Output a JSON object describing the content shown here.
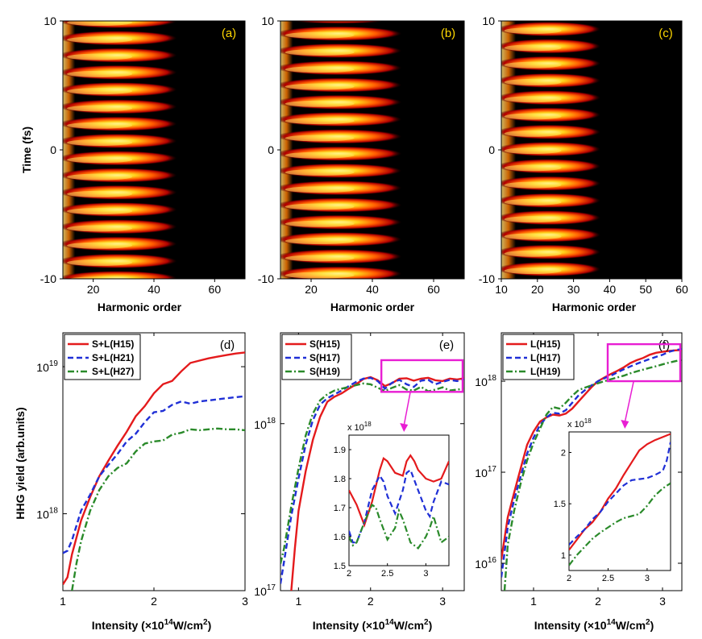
{
  "figure": {
    "heatmaps": {
      "xlabel": "Harmonic order",
      "ylabel": "Time (fs)",
      "y_ticks": [
        "10",
        "0",
        "-10"
      ],
      "panels": [
        {
          "label": "(a)",
          "xlim": [
            10,
            70
          ],
          "x_ticks": [
            "20",
            "40",
            "60"
          ],
          "cutoff": 47,
          "period_fs": 1.33,
          "offset_fs": 0.0
        },
        {
          "label": "(b)",
          "xlim": [
            10,
            70
          ],
          "x_ticks": [
            "20",
            "40",
            "60"
          ],
          "cutoff": 49,
          "period_fs": 1.33,
          "offset_fs": 0.35
        },
        {
          "label": "(c)",
          "xlim": [
            10,
            60
          ],
          "x_ticks": [
            "10",
            "20",
            "30",
            "40",
            "50",
            "60"
          ],
          "cutoff": 37,
          "period_fs": 1.33,
          "offset_fs": 0.7
        }
      ]
    },
    "ylabel_bottom": "HHG yield (arb.units)",
    "xlabel_bottom_prefix": "Intensity (×10",
    "xlabel_bottom_exp": "14",
    "xlabel_bottom_mid": "W/cm",
    "xlabel_bottom_exp2": "2",
    "xlabel_bottom_suffix": ")",
    "inset_scale_prefix": "x 10",
    "inset_scale_exp": "18"
  },
  "chart_data": [
    {
      "type": "line",
      "label": "(d)",
      "yscale": "log",
      "xlim": [
        1,
        3
      ],
      "ylim": [
        3e+17,
        1.7e+19
      ],
      "x_ticks": [
        1,
        2,
        3
      ],
      "y_ticks": [
        {
          "v": 1e+18,
          "b": "10",
          "e": "18"
        },
        {
          "v": 1e+19,
          "b": "10",
          "e": "19"
        }
      ],
      "series": [
        {
          "name": "S+L(H15)",
          "color": "#e41a1c",
          "dash": "solid",
          "x": [
            1.0,
            1.05,
            1.1,
            1.2,
            1.3,
            1.4,
            1.5,
            1.6,
            1.7,
            1.8,
            1.9,
            2.0,
            2.1,
            2.2,
            2.3,
            2.4,
            2.5,
            2.6,
            2.7,
            2.8,
            2.9,
            3.0
          ],
          "y": [
            3.3e+17,
            3.7e+17,
            5.3e+17,
            9e+17,
            1.3e+18,
            1.8e+18,
            2.3e+18,
            2.9e+18,
            3.6e+18,
            4.6e+18,
            5.4e+18,
            6.6e+18,
            7.6e+18,
            8e+18,
            9.3e+18,
            1.06e+19,
            1.1e+19,
            1.14e+19,
            1.17e+19,
            1.2e+19,
            1.23e+19,
            1.25e+19
          ]
        },
        {
          "name": "S+L(H21)",
          "color": "#1f2fd6",
          "dash": "dashed",
          "x": [
            1.0,
            1.05,
            1.1,
            1.2,
            1.3,
            1.4,
            1.5,
            1.6,
            1.7,
            1.8,
            1.9,
            2.0,
            2.1,
            2.2,
            2.3,
            2.4,
            2.5,
            2.6,
            2.7,
            2.8,
            2.9,
            3.0
          ],
          "y": [
            5.4e+17,
            5.6e+17,
            6.6e+17,
            1.05e+18,
            1.35e+18,
            1.8e+18,
            2.15e+18,
            2.55e+18,
            3.1e+18,
            3.5e+18,
            4.2e+18,
            4.9e+18,
            5e+18,
            5.5e+18,
            5.8e+18,
            5.6e+18,
            5.8e+18,
            5.9e+18,
            6e+18,
            6.1e+18,
            6.2e+18,
            6.3e+18
          ]
        },
        {
          "name": "S+L(H27)",
          "color": "#2a8a2a",
          "dash": "dashdot",
          "x": [
            1.1,
            1.15,
            1.2,
            1.3,
            1.4,
            1.5,
            1.6,
            1.7,
            1.8,
            1.9,
            2.0,
            2.1,
            2.2,
            2.3,
            2.4,
            2.5,
            2.6,
            2.7,
            2.8,
            2.9,
            3.0
          ],
          "y": [
            3e+17,
            4.6e+17,
            6.5e+17,
            1.05e+18,
            1.45e+18,
            1.8e+18,
            2.05e+18,
            2.2e+18,
            2.65e+18,
            3e+18,
            3.1e+18,
            3.15e+18,
            3.45e+18,
            3.55e+18,
            3.75e+18,
            3.7e+18,
            3.75e+18,
            3.8e+18,
            3.75e+18,
            3.75e+18,
            3.7e+18
          ]
        }
      ]
    },
    {
      "type": "line",
      "label": "(e)",
      "yscale": "log",
      "xlim": [
        0.75,
        3.3
      ],
      "ylim": [
        1e+17,
        3.5e+18
      ],
      "x_ticks": [
        1,
        2,
        3
      ],
      "y_ticks": [
        {
          "v": 1e+17,
          "b": "10",
          "e": "17"
        },
        {
          "v": 1e+18,
          "b": "10",
          "e": "18"
        }
      ],
      "series": [
        {
          "name": "S(H15)",
          "color": "#e41a1c",
          "dash": "solid",
          "x": [
            0.9,
            0.95,
            1.0,
            1.1,
            1.2,
            1.3,
            1.4,
            1.5,
            1.6,
            1.7,
            1.8,
            1.9,
            2.0,
            2.1,
            2.2,
            2.3,
            2.4,
            2.5,
            2.6,
            2.7,
            2.8,
            2.9,
            3.0,
            3.1,
            3.2,
            3.3
          ],
          "y": [
            1e+17,
            1.8e+17,
            3e+17,
            5.2e+17,
            8e+17,
            1.1e+18,
            1.35e+18,
            1.45e+18,
            1.52e+18,
            1.62e+18,
            1.72e+18,
            1.85e+18,
            1.9e+18,
            1.82e+18,
            1.68e+18,
            1.75e+18,
            1.86e+18,
            1.87e+18,
            1.81e+18,
            1.86e+18,
            1.88e+18,
            1.82e+18,
            1.8e+18,
            1.86e+18,
            1.84e+18,
            1.87e+18
          ]
        },
        {
          "name": "S(H17)",
          "color": "#1f2fd6",
          "dash": "dashed",
          "x": [
            0.75,
            0.8,
            0.9,
            1.0,
            1.1,
            1.2,
            1.3,
            1.4,
            1.5,
            1.6,
            1.7,
            1.8,
            1.9,
            2.0,
            2.1,
            2.2,
            2.3,
            2.4,
            2.5,
            2.6,
            2.7,
            2.8,
            2.9,
            3.0,
            3.1,
            3.2,
            3.3
          ],
          "y": [
            1.1e+17,
            1.5e+17,
            2.8e+17,
            4.7e+17,
            7.5e+17,
            1.05e+18,
            1.3e+18,
            1.42e+18,
            1.5e+18,
            1.58e+18,
            1.68e+18,
            1.78e+18,
            1.86e+18,
            1.88e+18,
            1.8e+18,
            1.62e+18,
            1.76e+18,
            1.83e+18,
            1.72e+18,
            1.66e+18,
            1.81e+18,
            1.83e+18,
            1.72e+18,
            1.78e+18,
            1.83e+18,
            1.8e+18,
            1.85e+18
          ]
        },
        {
          "name": "S(H19)",
          "color": "#2a8a2a",
          "dash": "dashdot",
          "x": [
            0.75,
            0.8,
            0.9,
            1.0,
            1.1,
            1.2,
            1.3,
            1.4,
            1.5,
            1.6,
            1.7,
            1.8,
            1.9,
            2.0,
            2.1,
            2.2,
            2.3,
            2.4,
            2.5,
            2.6,
            2.7,
            2.8,
            2.9,
            3.0,
            3.1,
            3.2,
            3.3
          ],
          "y": [
            1.45e+17,
            1.8e+17,
            3.2e+17,
            5.4e+17,
            8.5e+17,
            1.15e+18,
            1.38e+18,
            1.5e+18,
            1.58e+18,
            1.62e+18,
            1.66e+18,
            1.7e+18,
            1.74e+18,
            1.72e+18,
            1.64e+18,
            1.57e+18,
            1.64e+18,
            1.7e+18,
            1.6e+18,
            1.58e+18,
            1.66e+18,
            1.56e+18,
            1.6e+18,
            1.65e+18,
            1.58e+18,
            1.6e+18,
            1.62e+18
          ]
        }
      ],
      "highlight": {
        "xlim": [
          2.15,
          3.3
        ],
        "ylim": [
          1.55e+18,
          2.4e+18
        ],
        "color": "#e81ed3"
      },
      "inset": {
        "xlim": [
          2,
          3.3
        ],
        "ylim": [
          1.5,
          1.95
        ],
        "x_ticks": [
          2,
          2.5,
          3
        ],
        "y_ticks": [
          1.5,
          1.6,
          1.7,
          1.8,
          1.9
        ],
        "series": [
          {
            "color": "#e41a1c",
            "dash": "solid",
            "x": [
              2.0,
              2.1,
              2.2,
              2.3,
              2.4,
              2.45,
              2.5,
              2.6,
              2.7,
              2.75,
              2.8,
              2.85,
              2.9,
              3.0,
              3.1,
              3.2,
              3.3
            ],
            "y": [
              1.76,
              1.71,
              1.64,
              1.72,
              1.83,
              1.87,
              1.86,
              1.82,
              1.81,
              1.86,
              1.88,
              1.86,
              1.83,
              1.8,
              1.79,
              1.8,
              1.86
            ]
          },
          {
            "color": "#1f2fd6",
            "dash": "dashed",
            "x": [
              2.0,
              2.05,
              2.1,
              2.2,
              2.3,
              2.4,
              2.45,
              2.5,
              2.6,
              2.7,
              2.75,
              2.8,
              2.9,
              3.0,
              3.05,
              3.1,
              3.2,
              3.3
            ],
            "y": [
              1.62,
              1.58,
              1.58,
              1.65,
              1.76,
              1.81,
              1.79,
              1.74,
              1.68,
              1.76,
              1.82,
              1.83,
              1.76,
              1.69,
              1.67,
              1.72,
              1.79,
              1.78
            ]
          },
          {
            "color": "#2a8a2a",
            "dash": "dashdot",
            "x": [
              2.0,
              2.05,
              2.1,
              2.2,
              2.3,
              2.35,
              2.4,
              2.5,
              2.6,
              2.65,
              2.7,
              2.8,
              2.9,
              3.0,
              3.05,
              3.1,
              3.2,
              3.3
            ],
            "y": [
              1.6,
              1.57,
              1.58,
              1.65,
              1.71,
              1.7,
              1.66,
              1.59,
              1.63,
              1.69,
              1.66,
              1.58,
              1.56,
              1.6,
              1.63,
              1.67,
              1.58,
              1.6
            ]
          }
        ]
      }
    },
    {
      "type": "line",
      "label": "(f)",
      "yscale": "log",
      "xlim": [
        0.5,
        3.3
      ],
      "ylim": [
        5000000000000000.0,
        3.4e+18
      ],
      "x_ticks": [
        1,
        2,
        3
      ],
      "y_ticks": [
        {
          "v": 1e+16,
          "b": "10",
          "e": "16"
        },
        {
          "v": 1e+17,
          "b": "10",
          "e": "17"
        },
        {
          "v": 1e+18,
          "b": "10",
          "e": "18"
        }
      ],
      "series": [
        {
          "name": "L(H15)",
          "color": "#e41a1c",
          "dash": "solid",
          "x": [
            0.5,
            0.6,
            0.7,
            0.8,
            0.9,
            1.0,
            1.1,
            1.2,
            1.3,
            1.4,
            1.5,
            1.6,
            1.7,
            1.8,
            1.9,
            2.0,
            2.1,
            2.2,
            2.3,
            2.4,
            2.5,
            2.6,
            2.7,
            2.8,
            2.9,
            3.0,
            3.1,
            3.2,
            3.3
          ],
          "y": [
            1.1e+16,
            3.2e+16,
            6e+16,
            1.1e+17,
            2e+17,
            2.8e+17,
            3.6e+17,
            4e+17,
            4.3e+17,
            4.2e+17,
            4.4e+17,
            5e+17,
            6e+17,
            7.2e+17,
            8.6e+17,
            1e+18,
            1.1e+18,
            1.2e+18,
            1.3e+18,
            1.42e+18,
            1.58e+18,
            1.7e+18,
            1.8e+18,
            1.95e+18,
            2.05e+18,
            2.1e+18,
            2.15e+18,
            2.18e+18,
            2.2e+18
          ]
        },
        {
          "name": "L(H17)",
          "color": "#1f2fd6",
          "dash": "dashed",
          "x": [
            0.5,
            0.6,
            0.7,
            0.8,
            0.9,
            1.0,
            1.1,
            1.2,
            1.3,
            1.4,
            1.5,
            1.6,
            1.7,
            1.8,
            1.9,
            2.0,
            2.1,
            2.2,
            2.3,
            2.4,
            2.5,
            2.6,
            2.7,
            2.8,
            2.9,
            3.0,
            3.1,
            3.2,
            3.3
          ],
          "y": [
            7000000000000000.0,
            2.5e+16,
            5e+16,
            9e+16,
            1.6e+17,
            2.4e+17,
            3.3e+17,
            4e+17,
            4.5e+17,
            4.4e+17,
            4.8e+17,
            5.8e+17,
            7e+17,
            8e+17,
            9e+17,
            1e+18,
            1.08e+18,
            1.15e+18,
            1.25e+18,
            1.35e+18,
            1.45e+18,
            1.55e+18,
            1.65e+18,
            1.75e+18,
            1.85e+18,
            1.95e+18,
            2.1e+18,
            2.2e+18,
            2.25e+18
          ]
        },
        {
          "name": "L(H19)",
          "color": "#2a8a2a",
          "dash": "dashdot",
          "x": [
            0.55,
            0.6,
            0.7,
            0.8,
            0.9,
            1.0,
            1.1,
            1.2,
            1.3,
            1.4,
            1.5,
            1.6,
            1.7,
            1.8,
            1.9,
            2.0,
            2.1,
            2.2,
            2.3,
            2.4,
            2.5,
            2.6,
            2.7,
            2.8,
            2.9,
            3.0,
            3.1,
            3.2,
            3.3
          ],
          "y": [
            5000000000000000.0,
            1.6e+16,
            3.8e+16,
            7.5e+16,
            1.35e+17,
            2.1e+17,
            3e+17,
            4.3e+17,
            5.2e+17,
            5e+17,
            5.8e+17,
            6.9e+17,
            8e+17,
            8.5e+17,
            9e+17,
            9.5e+17,
            1e+18,
            1.05e+18,
            1.1e+18,
            1.15e+18,
            1.22e+18,
            1.28e+18,
            1.34e+18,
            1.4e+18,
            1.46e+18,
            1.53e+18,
            1.6e+18,
            1.66e+18,
            1.72e+18
          ]
        }
      ],
      "highlight": {
        "xlim": [
          2.15,
          3.3
        ],
        "ylim": [
          1e+18,
          2.55e+18
        ],
        "color": "#e81ed3"
      },
      "inset": {
        "xlim": [
          2,
          3.3
        ],
        "ylim": [
          0.85,
          2.2
        ],
        "x_ticks": [
          2,
          2.5,
          3
        ],
        "y_ticks": [
          1,
          1.5,
          2
        ],
        "series": [
          {
            "color": "#e41a1c",
            "dash": "solid",
            "x": [
              2.0,
              2.1,
              2.2,
              2.3,
              2.4,
              2.5,
              2.6,
              2.7,
              2.8,
              2.9,
              3.0,
              3.1,
              3.2,
              3.3
            ],
            "y": [
              1.05,
              1.15,
              1.25,
              1.32,
              1.42,
              1.55,
              1.65,
              1.78,
              1.9,
              2.02,
              2.08,
              2.12,
              2.15,
              2.18
            ]
          },
          {
            "color": "#1f2fd6",
            "dash": "dashed",
            "x": [
              2.0,
              2.1,
              2.2,
              2.3,
              2.4,
              2.5,
              2.6,
              2.7,
              2.8,
              2.9,
              3.0,
              3.1,
              3.2,
              3.25,
              3.3
            ],
            "y": [
              1.1,
              1.18,
              1.25,
              1.35,
              1.42,
              1.52,
              1.6,
              1.68,
              1.73,
              1.74,
              1.75,
              1.78,
              1.82,
              1.92,
              2.1
            ]
          },
          {
            "color": "#2a8a2a",
            "dash": "dashdot",
            "x": [
              2.0,
              2.1,
              2.2,
              2.3,
              2.4,
              2.5,
              2.6,
              2.7,
              2.8,
              2.9,
              3.0,
              3.1,
              3.2,
              3.3
            ],
            "y": [
              0.9,
              1.0,
              1.08,
              1.16,
              1.22,
              1.27,
              1.32,
              1.36,
              1.38,
              1.4,
              1.48,
              1.58,
              1.65,
              1.7
            ]
          }
        ]
      }
    }
  ]
}
